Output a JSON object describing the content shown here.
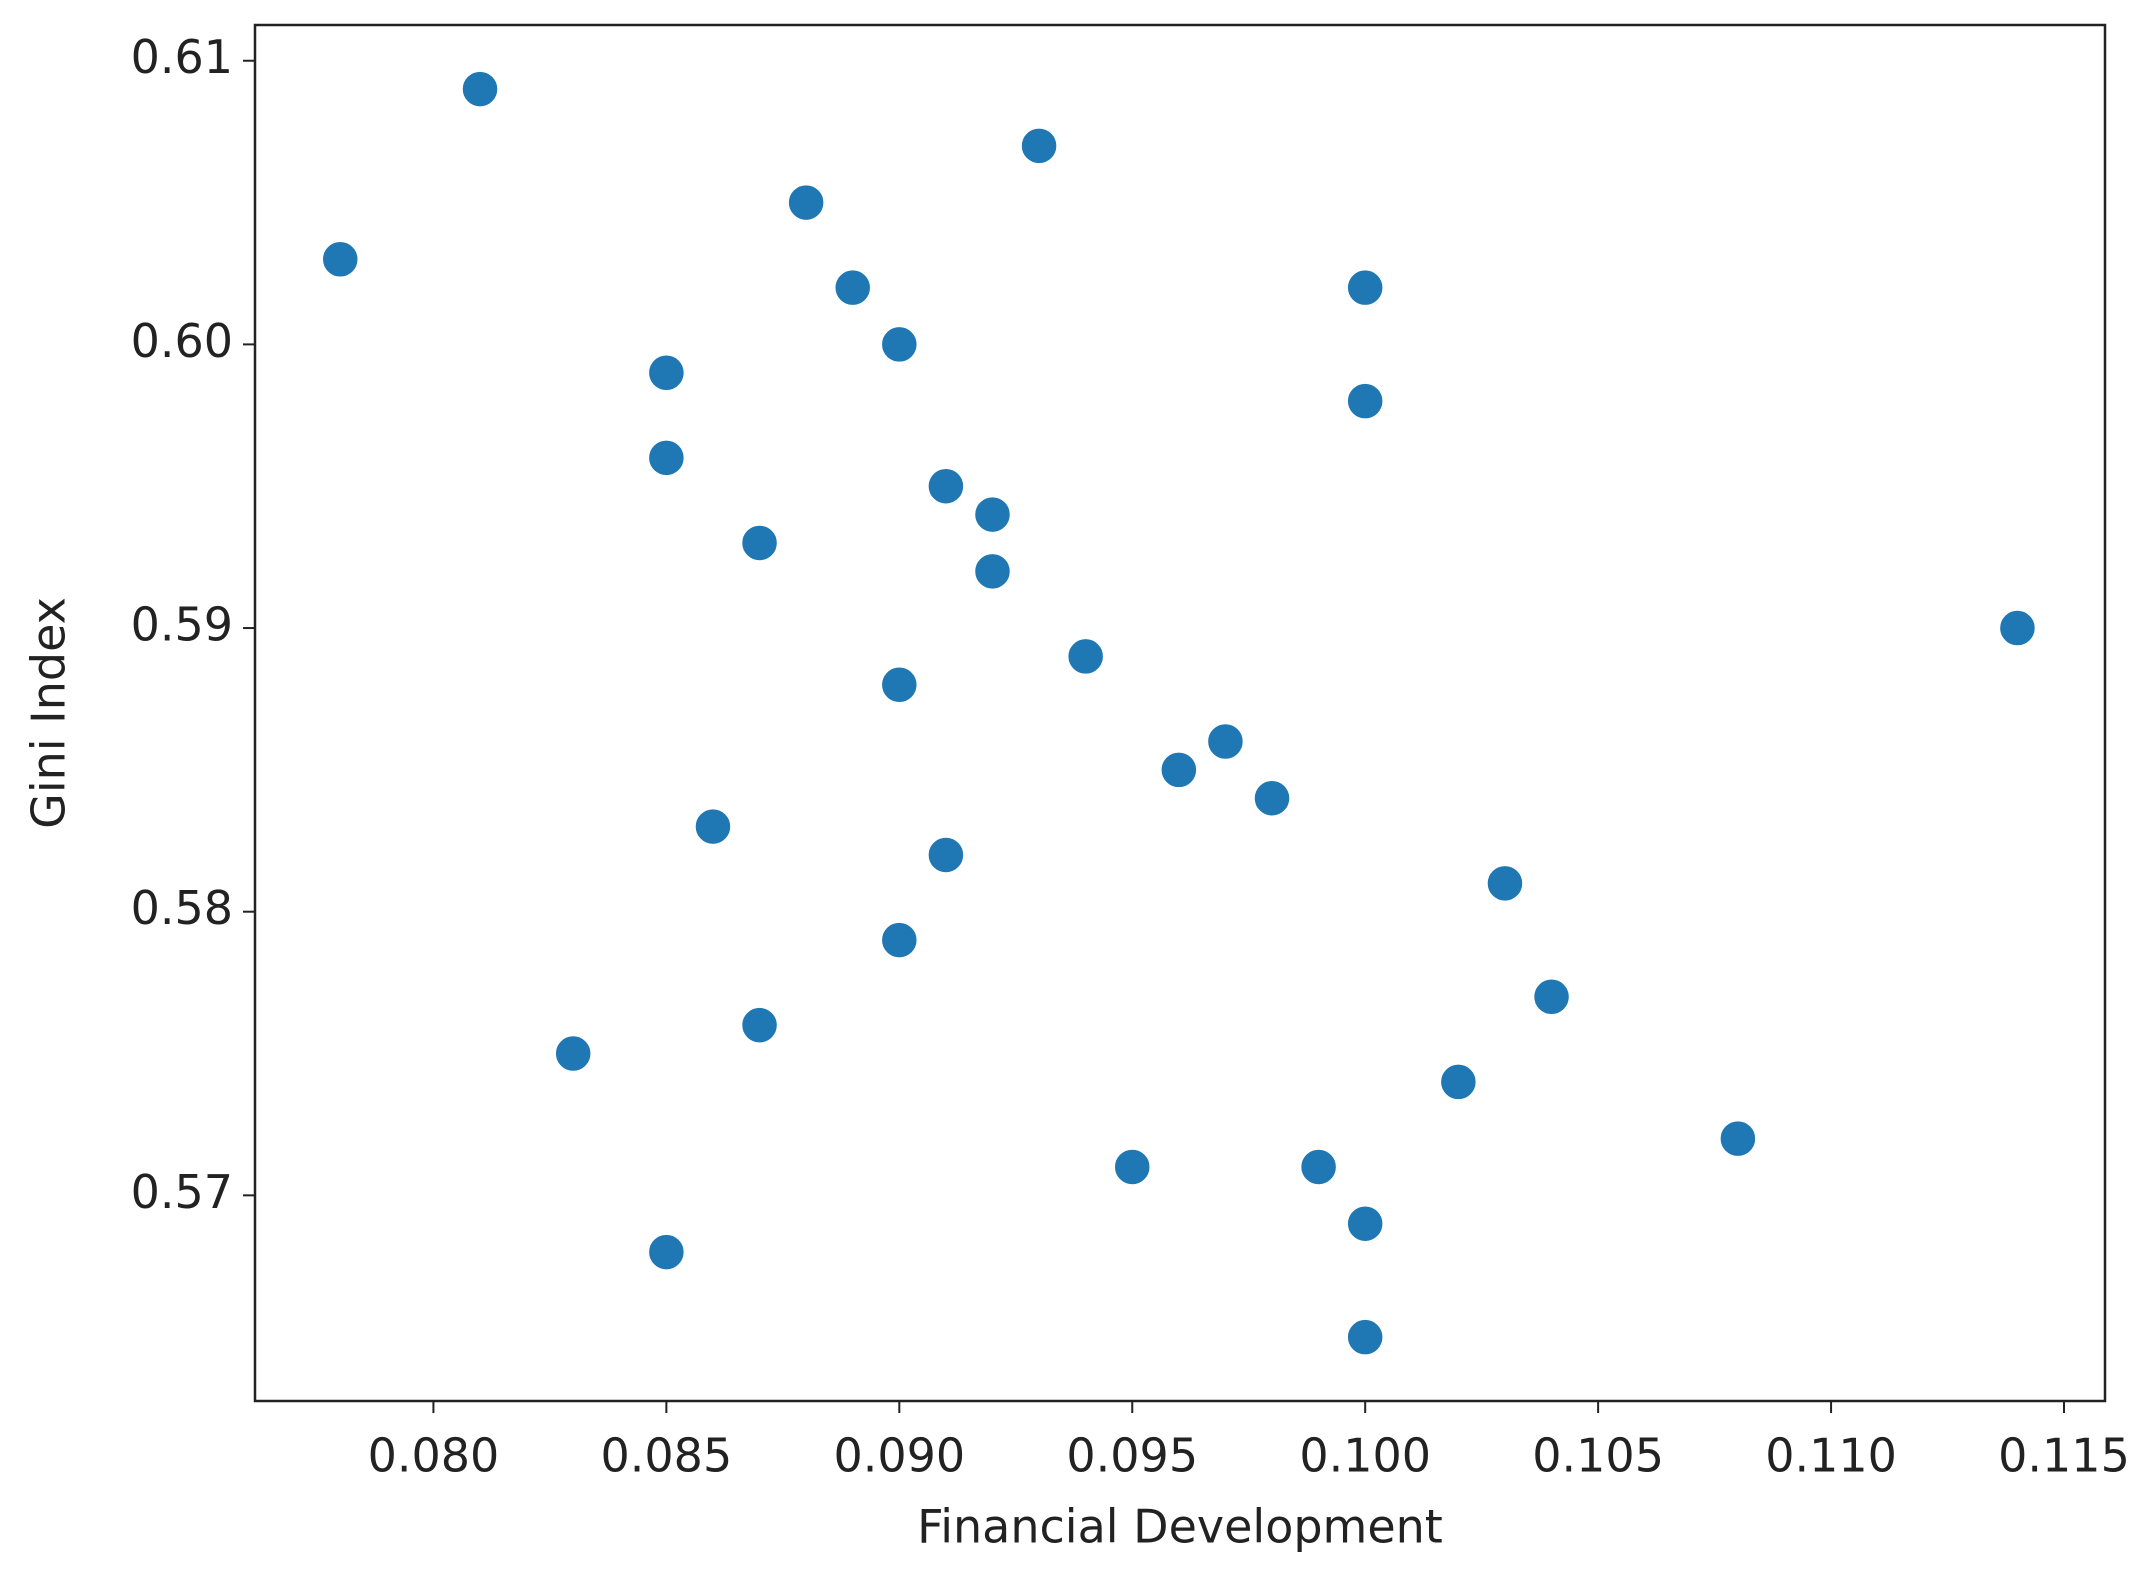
{
  "chart_data": {
    "type": "scatter",
    "x_label": "Financial Development",
    "y_label": "Gini Index",
    "color": "#1f77b4",
    "xlim": [
      0.07617,
      0.11588
    ],
    "ylim": [
      0.56275,
      0.61126
    ],
    "xticks": [
      {
        "value": 0.08,
        "label": "0.080"
      },
      {
        "value": 0.085,
        "label": "0.085"
      },
      {
        "value": 0.09,
        "label": "0.090"
      },
      {
        "value": 0.095,
        "label": "0.095"
      },
      {
        "value": 0.1,
        "label": "0.100"
      },
      {
        "value": 0.105,
        "label": "0.105"
      },
      {
        "value": 0.11,
        "label": "0.110"
      },
      {
        "value": 0.115,
        "label": "0.115"
      }
    ],
    "yticks": [
      0.57,
      0.58,
      0.59,
      {
        "value": 0.6,
        "label": "0.60"
      },
      0.61
    ],
    "x": [
      0.078,
      0.081,
      0.083,
      0.085,
      0.085,
      0.085,
      0.086,
      0.087,
      0.087,
      0.088,
      0.089,
      0.09,
      0.09,
      0.09,
      0.091,
      0.091,
      0.092,
      0.092,
      0.093,
      0.094,
      0.095,
      0.096,
      0.097,
      0.098,
      0.099,
      0.1,
      0.1,
      0.1,
      0.1,
      0.102,
      0.103,
      0.104,
      0.108,
      0.114
    ],
    "values": [
      0.603,
      0.609,
      0.575,
      0.599,
      0.596,
      0.568,
      0.583,
      0.593,
      0.576,
      0.605,
      0.602,
      0.6,
      0.588,
      0.579,
      0.595,
      0.582,
      0.594,
      0.592,
      0.607,
      0.589,
      0.571,
      0.585,
      0.586,
      0.584,
      0.571,
      0.602,
      0.598,
      0.569,
      0.565,
      0.574,
      0.581,
      0.577,
      0.572,
      0.59
    ]
  }
}
